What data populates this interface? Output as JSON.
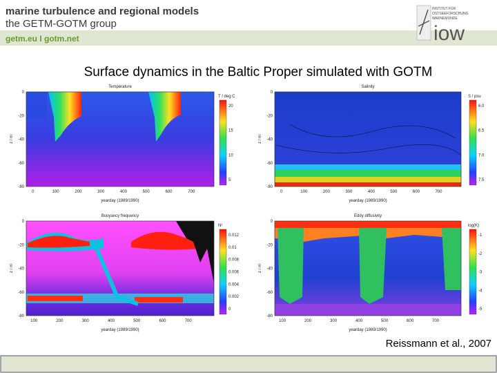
{
  "header": {
    "line1": "marine turbulence and regional models",
    "line2": "the GETM-GOTM group",
    "links": "getm.eu  I  gotm.net",
    "logo": "iow",
    "logo_small": [
      "INSTITUT FÜR",
      "OSTSEEFORSCHUNG",
      "WARNEMÜNDE"
    ]
  },
  "title": "Surface dynamics in the Baltic Proper simulated with GOTM",
  "panels": [
    {
      "title": "Temperature",
      "ylabel": "z / m",
      "xlabel": "yearday (1989/1990)",
      "yticks": [
        "0",
        "-20",
        "-40",
        "-60",
        "-80"
      ],
      "xticks": [
        "0",
        "100",
        "200",
        "300",
        "400",
        "500",
        "600",
        "700"
      ],
      "cbar_label": "T / deg C",
      "cbar_ticks": [
        "20",
        "15",
        "10",
        "5"
      ]
    },
    {
      "title": "Salinity",
      "ylabel": "z / m",
      "xlabel": "yearday (1989/1990)",
      "yticks": [
        "0",
        "-20",
        "-40",
        "-60",
        "-80"
      ],
      "xticks": [
        "0",
        "100",
        "200",
        "300",
        "400",
        "500",
        "600",
        "700"
      ],
      "cbar_label": "S / psu",
      "cbar_ticks": [
        "6.0",
        "6.5",
        "7.0",
        "7.5"
      ]
    },
    {
      "title": "Buoyancy frequency",
      "ylabel": "z / m",
      "xlabel": "yearday (1989/1990)",
      "yticks": [
        "0",
        "-20",
        "-40",
        "-60",
        "-80"
      ],
      "xticks": [
        "100",
        "200",
        "300",
        "400",
        "500",
        "600",
        "700"
      ],
      "cbar_label": "N²",
      "cbar_ticks": [
        "0.012",
        "0.01",
        "0.008",
        "0.006",
        "0.004",
        "0.002",
        "0"
      ]
    },
    {
      "title": "Eddy diffusivity",
      "ylabel": "z / m",
      "xlabel": "yearday (1989/1990)",
      "yticks": [
        "0",
        "-20",
        "-40",
        "-60",
        "-80"
      ],
      "xticks": [
        "100",
        "200",
        "300",
        "400",
        "500",
        "600",
        "700"
      ],
      "cbar_label": "log(K)",
      "cbar_ticks": [
        "-1",
        "-2",
        "-3",
        "-4",
        "-5"
      ]
    }
  ],
  "citation": "Reissmann et al., 2007"
}
